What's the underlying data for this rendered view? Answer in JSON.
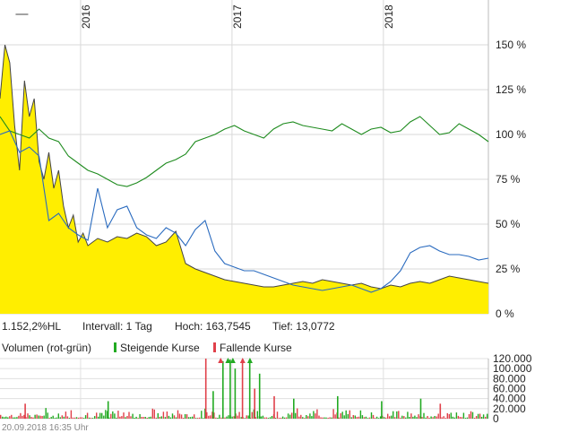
{
  "chart_data": [
    {
      "type": "area",
      "x_ticks": [
        "2016",
        "2017",
        "2018"
      ],
      "y_ticks": [
        "150 %",
        "125 %",
        "100 %",
        "75 %",
        "50 %",
        "25 %",
        "0 %"
      ],
      "y_tick_values": [
        150,
        125,
        100,
        75,
        50,
        25,
        0
      ],
      "ylim": [
        0,
        170
      ],
      "grid": true,
      "series": [
        {
          "role": "main (yellow area, dark line)",
          "color": "#ffee00",
          "line_color": "#444444",
          "x": [
            0,
            0.01,
            0.02,
            0.03,
            0.04,
            0.05,
            0.06,
            0.07,
            0.08,
            0.09,
            0.1,
            0.11,
            0.12,
            0.13,
            0.14,
            0.15,
            0.16,
            0.17,
            0.18,
            0.19,
            0.2,
            0.22,
            0.24,
            0.26,
            0.28,
            0.3,
            0.32,
            0.34,
            0.36,
            0.38,
            0.4,
            0.42,
            0.44,
            0.46,
            0.48,
            0.5,
            0.52,
            0.54,
            0.56,
            0.58,
            0.6,
            0.62,
            0.64,
            0.66,
            0.68,
            0.7,
            0.72,
            0.74,
            0.76,
            0.78,
            0.8,
            0.82,
            0.84,
            0.86,
            0.88,
            0.9,
            0.92,
            0.94,
            0.96,
            0.98,
            1
          ],
          "values": [
            120,
            150,
            140,
            105,
            80,
            130,
            110,
            120,
            85,
            75,
            90,
            70,
            80,
            60,
            48,
            55,
            40,
            45,
            38,
            40,
            42,
            40,
            43,
            42,
            45,
            43,
            38,
            40,
            46,
            28,
            25,
            23,
            21,
            19,
            18,
            17,
            16,
            15,
            15,
            16,
            17,
            18,
            17,
            19,
            18,
            17,
            16,
            17,
            15,
            14,
            16,
            15,
            17,
            18,
            17,
            19,
            21,
            20,
            19,
            18,
            17
          ]
        },
        {
          "role": "comparison 1",
          "color": "#1e8b1e",
          "x": [
            0,
            0.02,
            0.04,
            0.06,
            0.08,
            0.1,
            0.12,
            0.14,
            0.16,
            0.18,
            0.2,
            0.22,
            0.24,
            0.26,
            0.28,
            0.3,
            0.32,
            0.34,
            0.36,
            0.38,
            0.4,
            0.42,
            0.44,
            0.46,
            0.48,
            0.5,
            0.52,
            0.54,
            0.56,
            0.58,
            0.6,
            0.62,
            0.64,
            0.66,
            0.68,
            0.7,
            0.72,
            0.74,
            0.76,
            0.78,
            0.8,
            0.82,
            0.84,
            0.86,
            0.88,
            0.9,
            0.92,
            0.94,
            0.96,
            0.98,
            1
          ],
          "values": [
            110,
            102,
            100,
            98,
            103,
            98,
            96,
            88,
            84,
            80,
            78,
            75,
            72,
            71,
            73,
            76,
            80,
            84,
            86,
            89,
            96,
            98,
            100,
            103,
            105,
            102,
            100,
            98,
            103,
            106,
            107,
            105,
            104,
            103,
            102,
            106,
            103,
            100,
            103,
            104,
            101,
            102,
            107,
            110,
            105,
            100,
            101,
            106,
            103,
            100,
            96
          ]
        },
        {
          "role": "comparison 2",
          "color": "#2a6bbf",
          "x": [
            0,
            0.02,
            0.04,
            0.06,
            0.08,
            0.1,
            0.12,
            0.14,
            0.16,
            0.18,
            0.2,
            0.22,
            0.24,
            0.26,
            0.28,
            0.3,
            0.32,
            0.34,
            0.36,
            0.38,
            0.4,
            0.42,
            0.44,
            0.46,
            0.48,
            0.5,
            0.52,
            0.54,
            0.56,
            0.58,
            0.6,
            0.62,
            0.64,
            0.66,
            0.68,
            0.7,
            0.72,
            0.74,
            0.76,
            0.78,
            0.8,
            0.82,
            0.84,
            0.86,
            0.88,
            0.9,
            0.92,
            0.94,
            0.96,
            0.98,
            1
          ],
          "values": [
            100,
            102,
            90,
            93,
            88,
            52,
            56,
            48,
            44,
            41,
            70,
            48,
            58,
            60,
            48,
            44,
            42,
            48,
            45,
            38,
            47,
            52,
            35,
            28,
            26,
            24,
            24,
            22,
            20,
            18,
            16,
            15,
            14,
            13,
            14,
            15,
            16,
            14,
            12,
            14,
            18,
            24,
            34,
            37,
            38,
            35,
            33,
            33,
            32,
            30,
            31
          ]
        }
      ]
    },
    {
      "type": "bar",
      "legend": [
        "Volumen (rot-grün)",
        "Steigende Kurse",
        "Fallende Kurse"
      ],
      "y_ticks": [
        "120.000",
        "100.000",
        "80.000",
        "60.000",
        "40.000",
        "20.000",
        "0"
      ],
      "y_tick_values": [
        120000,
        100000,
        80000,
        60000,
        40000,
        20000,
        0
      ],
      "ylim": [
        0,
        120000
      ],
      "up_color": "#22aa22",
      "down_color": "#e0404a",
      "spikes": [
        {
          "x": 0.42,
          "value": 120000,
          "dir": "down"
        },
        {
          "x": 0.435,
          "value": 55000,
          "dir": "up"
        },
        {
          "x": 0.455,
          "value": 115000,
          "dir": "up"
        },
        {
          "x": 0.47,
          "value": 118000,
          "dir": "up"
        },
        {
          "x": 0.48,
          "value": 100000,
          "dir": "up"
        },
        {
          "x": 0.495,
          "value": 118000,
          "dir": "down"
        },
        {
          "x": 0.51,
          "value": 118000,
          "dir": "up"
        },
        {
          "x": 0.52,
          "value": 60000,
          "dir": "down"
        },
        {
          "x": 0.53,
          "value": 90000,
          "dir": "up"
        },
        {
          "x": 0.56,
          "value": 45000,
          "dir": "down"
        },
        {
          "x": 0.6,
          "value": 40000,
          "dir": "up"
        },
        {
          "x": 0.22,
          "value": 35000,
          "dir": "up"
        },
        {
          "x": 0.05,
          "value": 30000,
          "dir": "down"
        },
        {
          "x": 0.69,
          "value": 45000,
          "dir": "up"
        },
        {
          "x": 0.78,
          "value": 35000,
          "dir": "up"
        },
        {
          "x": 0.86,
          "value": 40000,
          "dir": "up"
        },
        {
          "x": 0.9,
          "value": 30000,
          "dir": "down"
        }
      ],
      "overflow_markers": [
        {
          "x": 0.45,
          "dir": "down"
        },
        {
          "x": 0.465,
          "dir": "up"
        },
        {
          "x": 0.475,
          "dir": "up"
        },
        {
          "x": 0.495,
          "dir": "down"
        },
        {
          "x": 0.51,
          "dir": "up"
        }
      ]
    }
  ],
  "info": {
    "change": "1.152,2%HL",
    "interval": "Intervall: 1 Tag",
    "high": "Hoch: 163,7545",
    "low": "Tief: 13,0772"
  },
  "legend": {
    "volume": "Volumen (rot-grün)",
    "rising": "Steigende Kurse",
    "falling": "Fallende Kurse"
  },
  "timestamp": "20.09.2018 16:35 Uhr"
}
